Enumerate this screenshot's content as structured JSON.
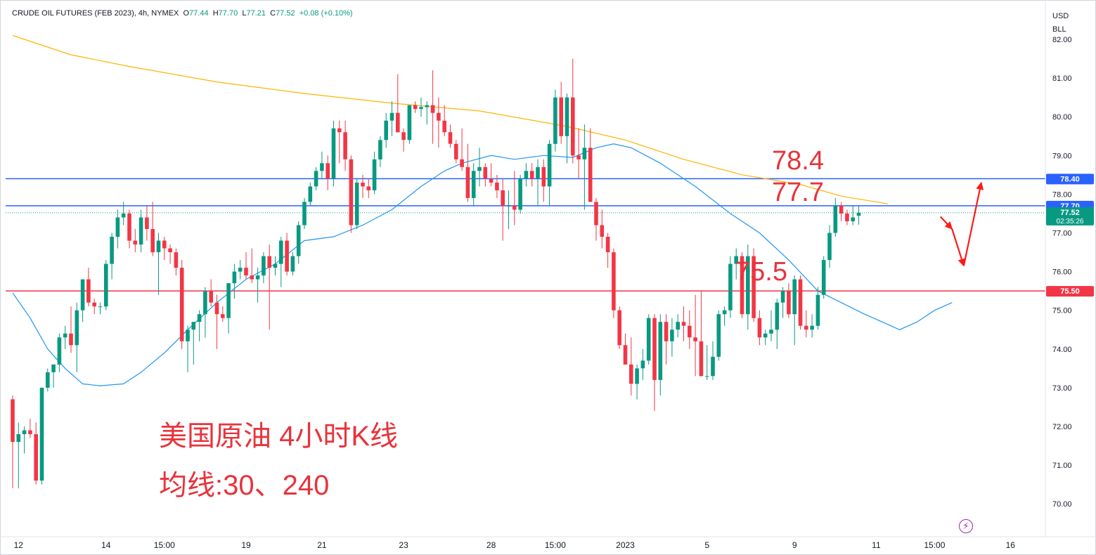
{
  "header": {
    "symbol": "CRUDE OIL FUTURES (FEB 2023), 4h, NYMEX",
    "o_label": "O",
    "o_value": "77.44",
    "h_label": "H",
    "h_value": "77.70",
    "l_label": "L",
    "l_value": "77.21",
    "c_label": "C",
    "c_value": "77.52",
    "change": "+0.08 (+0.10%)"
  },
  "currency": {
    "line1": "USD",
    "line2": "BLL"
  },
  "annotations": {
    "level_high": "78.4",
    "level_mid": "77.7",
    "level_low": "75.5",
    "title_cn": "美国原油 4小时K线",
    "ma_cn": "均线:30、240"
  },
  "colors": {
    "up": "#089981",
    "down": "#f23645",
    "ma30": "#2196f3",
    "ma240": "#ffb300",
    "hline_blue": "#2962ff",
    "hline_red": "#f23645",
    "annotation": "#e8333b"
  },
  "icons": {
    "event_marker": "lightning-icon"
  },
  "chart_data": {
    "type": "candlestick",
    "title": "CRUDE OIL FUTURES (FEB 2023), 4h, NYMEX",
    "ylim": [
      69.5,
      82.4
    ],
    "y_ticks": [
      70,
      71,
      72,
      73,
      74,
      75,
      76,
      77,
      78,
      79,
      80,
      81,
      82
    ],
    "y_tick_labels": [
      "70.00",
      "71.00",
      "72.00",
      "73.00",
      "74.00",
      "75.00",
      "76.00",
      "77.00",
      "78.00",
      "79.00",
      "80.00",
      "81.00",
      "82.00"
    ],
    "x_tick_labels": [
      {
        "label": "12",
        "bar": 1
      },
      {
        "label": "14",
        "bar": 16
      },
      {
        "label": "15:00",
        "bar": 26
      },
      {
        "label": "19",
        "bar": 40
      },
      {
        "label": "21",
        "bar": 53
      },
      {
        "label": "23",
        "bar": 67
      },
      {
        "label": "28",
        "bar": 82
      },
      {
        "label": "15:00",
        "bar": 93
      },
      {
        "label": "2023",
        "bar": 105
      },
      {
        "label": "5",
        "bar": 119
      },
      {
        "label": "9",
        "bar": 134
      },
      {
        "label": "11",
        "bar": 148
      },
      {
        "label": "15:00",
        "bar": 158
      },
      {
        "label": "16",
        "bar": 171
      }
    ],
    "price_labels": [
      {
        "value": 78.4,
        "text": "78.40",
        "color": "#2962ff"
      },
      {
        "value": 77.7,
        "text": "77.70",
        "color": "#2962ff"
      },
      {
        "value": 77.52,
        "text": "77.52",
        "subtext": "02:35:26",
        "color": "#089981"
      },
      {
        "value": 75.5,
        "text": "75.50",
        "color": "#f23645"
      }
    ],
    "horizontal_lines": [
      {
        "value": 78.4,
        "color": "#2962ff",
        "style": "solid"
      },
      {
        "value": 77.7,
        "color": "#2962ff",
        "style": "solid"
      },
      {
        "value": 77.52,
        "color": "#089981",
        "style": "dotted"
      },
      {
        "value": 75.5,
        "color": "#f23645",
        "style": "solid"
      }
    ],
    "series_ma": [
      {
        "name": "MA30",
        "color": "#2196f3",
        "points": [
          [
            0,
            75.45
          ],
          [
            3,
            74.8
          ],
          [
            6,
            74.0
          ],
          [
            9,
            73.5
          ],
          [
            12,
            73.1
          ],
          [
            15,
            73.05
          ],
          [
            19,
            73.1
          ],
          [
            22,
            73.4
          ],
          [
            26,
            73.9
          ],
          [
            30,
            74.5
          ],
          [
            35,
            75.2
          ],
          [
            40,
            75.8
          ],
          [
            45,
            76.2
          ],
          [
            50,
            76.8
          ],
          [
            55,
            76.9
          ],
          [
            60,
            77.2
          ],
          [
            65,
            77.6
          ],
          [
            70,
            78.2
          ],
          [
            74,
            78.6
          ],
          [
            77,
            78.8
          ],
          [
            82,
            79.0
          ],
          [
            86,
            78.9
          ],
          [
            91,
            79.0
          ],
          [
            96,
            78.95
          ],
          [
            100,
            79.2
          ],
          [
            103,
            79.3
          ],
          [
            106,
            79.2
          ],
          [
            111,
            78.8
          ],
          [
            117,
            78.2
          ],
          [
            123,
            77.5
          ],
          [
            128,
            77.0
          ],
          [
            133,
            76.3
          ],
          [
            138,
            75.5
          ],
          [
            142,
            75.2
          ],
          [
            146,
            74.9
          ],
          [
            149,
            74.7
          ],
          [
            152,
            74.5
          ],
          [
            155,
            74.7
          ],
          [
            158,
            75.0
          ],
          [
            161,
            75.2
          ]
        ]
      },
      {
        "name": "MA240",
        "color": "#ffb300",
        "points": [
          [
            0,
            82.1
          ],
          [
            10,
            81.6
          ],
          [
            20,
            81.3
          ],
          [
            35,
            80.9
          ],
          [
            50,
            80.6
          ],
          [
            65,
            80.35
          ],
          [
            80,
            80.15
          ],
          [
            95,
            79.75
          ],
          [
            105,
            79.4
          ],
          [
            115,
            78.9
          ],
          [
            125,
            78.5
          ],
          [
            135,
            78.25
          ],
          [
            142,
            77.95
          ],
          [
            150,
            77.75
          ]
        ]
      }
    ],
    "arrows": [
      {
        "from": [
          159,
          77.42
        ],
        "to": [
          161,
          77.1
        ]
      },
      {
        "from": [
          161,
          77.1
        ],
        "to": [
          163,
          76.15
        ]
      },
      {
        "from": [
          163,
          76.15
        ],
        "to": [
          166,
          78.3
        ]
      }
    ],
    "ohlc": [
      [
        72.7,
        72.8,
        70.4,
        71.6
      ],
      [
        71.6,
        72.1,
        70.4,
        71.8
      ],
      [
        71.8,
        72.0,
        71.3,
        71.9
      ],
      [
        71.9,
        72.2,
        71.7,
        71.8
      ],
      [
        71.8,
        72.1,
        70.5,
        70.6
      ],
      [
        70.6,
        73.0,
        70.5,
        73.0
      ],
      [
        73.0,
        73.5,
        72.9,
        73.4
      ],
      [
        73.4,
        73.6,
        73.0,
        73.6
      ],
      [
        73.6,
        74.4,
        73.4,
        74.3
      ],
      [
        74.3,
        74.6,
        74.0,
        74.4
      ],
      [
        74.4,
        75.1,
        73.9,
        74.1
      ],
      [
        74.1,
        75.2,
        73.4,
        75.0
      ],
      [
        75.0,
        75.8,
        74.7,
        75.8
      ],
      [
        75.8,
        76.1,
        75.1,
        75.2
      ],
      [
        75.2,
        75.3,
        74.9,
        75.1
      ],
      [
        75.1,
        75.2,
        74.9,
        75.1
      ],
      [
        75.1,
        76.3,
        75.0,
        76.2
      ],
      [
        76.2,
        77.0,
        75.8,
        76.9
      ],
      [
        76.9,
        77.6,
        76.6,
        77.4
      ],
      [
        77.4,
        77.8,
        77.2,
        77.5
      ],
      [
        77.5,
        77.6,
        76.6,
        76.8
      ],
      [
        76.8,
        77.1,
        76.5,
        76.7
      ],
      [
        76.7,
        77.6,
        76.5,
        77.4
      ],
      [
        77.4,
        77.7,
        76.8,
        77.1
      ],
      [
        77.1,
        77.8,
        76.4,
        76.5
      ],
      [
        76.5,
        77.0,
        75.4,
        76.8
      ],
      [
        76.8,
        76.9,
        76.3,
        76.6
      ],
      [
        76.6,
        76.7,
        76.2,
        76.5
      ],
      [
        76.5,
        76.6,
        75.9,
        76.1
      ],
      [
        76.1,
        76.3,
        74.0,
        74.2
      ],
      [
        74.2,
        74.6,
        73.4,
        74.5
      ],
      [
        74.5,
        74.7,
        73.6,
        74.7
      ],
      [
        74.7,
        75.0,
        74.2,
        74.9
      ],
      [
        74.9,
        75.6,
        74.3,
        75.5
      ],
      [
        75.5,
        75.8,
        75.1,
        75.2
      ],
      [
        75.2,
        75.4,
        74.0,
        74.9
      ],
      [
        74.9,
        75.1,
        74.7,
        74.8
      ],
      [
        74.8,
        75.7,
        74.4,
        75.7
      ],
      [
        75.7,
        76.2,
        75.3,
        76.0
      ],
      [
        76.0,
        76.3,
        75.8,
        76.1
      ],
      [
        76.1,
        76.5,
        75.8,
        75.9
      ],
      [
        75.9,
        76.6,
        75.7,
        75.8
      ],
      [
        75.8,
        76.1,
        75.2,
        75.9
      ],
      [
        75.9,
        76.5,
        75.7,
        76.4
      ],
      [
        76.4,
        76.7,
        74.5,
        76.1
      ],
      [
        76.1,
        76.4,
        75.9,
        76.2
      ],
      [
        76.2,
        76.9,
        75.6,
        76.8
      ],
      [
        76.8,
        77.0,
        75.9,
        76.0
      ],
      [
        76.0,
        76.5,
        75.9,
        76.4
      ],
      [
        76.4,
        77.3,
        76.2,
        77.2
      ],
      [
        77.2,
        77.9,
        77.1,
        77.8
      ],
      [
        77.8,
        78.3,
        77.7,
        78.2
      ],
      [
        78.2,
        78.7,
        78.1,
        78.6
      ],
      [
        78.6,
        79.1,
        78.4,
        78.8
      ],
      [
        78.8,
        79.0,
        78.1,
        78.4
      ],
      [
        78.4,
        79.9,
        78.2,
        79.7
      ],
      [
        79.7,
        79.9,
        78.8,
        79.6
      ],
      [
        79.6,
        79.9,
        78.6,
        78.9
      ],
      [
        78.9,
        79.0,
        77.0,
        77.2
      ],
      [
        77.2,
        78.4,
        77.1,
        78.3
      ],
      [
        78.3,
        78.5,
        77.9,
        78.2
      ],
      [
        78.2,
        78.4,
        77.9,
        78.1
      ],
      [
        78.1,
        79.1,
        78.0,
        78.9
      ],
      [
        78.9,
        79.5,
        78.7,
        79.4
      ],
      [
        79.4,
        80.1,
        79.2,
        79.9
      ],
      [
        79.9,
        80.4,
        79.5,
        80.1
      ],
      [
        80.1,
        81.1,
        79.6,
        79.6
      ],
      [
        79.6,
        79.7,
        79.1,
        79.4
      ],
      [
        79.4,
        80.3,
        79.3,
        80.3
      ],
      [
        80.3,
        80.4,
        80.1,
        80.2
      ],
      [
        80.2,
        80.5,
        80.0,
        80.25
      ],
      [
        80.25,
        80.4,
        79.8,
        80.3
      ],
      [
        80.3,
        81.2,
        79.3,
        80.1
      ],
      [
        80.1,
        80.5,
        79.2,
        79.9
      ],
      [
        79.9,
        80.3,
        79.5,
        79.6
      ],
      [
        79.6,
        79.8,
        79.2,
        79.3
      ],
      [
        79.3,
        79.4,
        78.8,
        78.9
      ],
      [
        78.9,
        79.7,
        78.6,
        78.7
      ],
      [
        78.7,
        79.3,
        77.8,
        77.9
      ],
      [
        77.9,
        78.8,
        77.7,
        78.6
      ],
      [
        78.6,
        79.2,
        78.2,
        78.7
      ],
      [
        78.7,
        78.8,
        78.2,
        78.4
      ],
      [
        78.4,
        78.8,
        78.2,
        78.3
      ],
      [
        78.3,
        78.5,
        77.9,
        78.1
      ],
      [
        78.1,
        78.4,
        76.8,
        77.7
      ],
      [
        77.7,
        78.1,
        77.1,
        77.7
      ],
      [
        77.7,
        78.6,
        77.2,
        77.6
      ],
      [
        77.6,
        78.5,
        77.5,
        78.4
      ],
      [
        78.4,
        78.8,
        78.2,
        78.6
      ],
      [
        78.6,
        78.8,
        78.2,
        78.4
      ],
      [
        78.4,
        78.9,
        77.7,
        78.7
      ],
      [
        78.7,
        78.9,
        77.8,
        78.2
      ],
      [
        78.2,
        79.4,
        77.7,
        79.3
      ],
      [
        79.3,
        80.7,
        79.1,
        80.5
      ],
      [
        80.5,
        80.9,
        79.3,
        79.5
      ],
      [
        79.5,
        80.6,
        78.8,
        80.5
      ],
      [
        80.5,
        81.5,
        78.8,
        79.0
      ],
      [
        79.0,
        79.7,
        78.4,
        78.9
      ],
      [
        78.9,
        79.8,
        77.6,
        79.2
      ],
      [
        79.2,
        79.7,
        77.9,
        77.8
      ],
      [
        77.8,
        77.9,
        76.8,
        77.2
      ],
      [
        77.2,
        77.6,
        76.6,
        76.9
      ],
      [
        76.9,
        77.0,
        76.1,
        76.5
      ],
      [
        76.5,
        76.6,
        74.8,
        75.0
      ],
      [
        75.0,
        75.1,
        74.0,
        74.1
      ],
      [
        74.1,
        74.4,
        73.6,
        73.6
      ],
      [
        73.6,
        74.3,
        72.8,
        73.1
      ],
      [
        73.1,
        73.6,
        72.7,
        73.5
      ],
      [
        73.5,
        74.0,
        73.2,
        73.7
      ],
      [
        73.7,
        74.9,
        73.6,
        74.8
      ],
      [
        74.8,
        74.9,
        72.4,
        73.2
      ],
      [
        73.2,
        74.9,
        72.8,
        74.7
      ],
      [
        74.7,
        74.9,
        73.6,
        74.2
      ],
      [
        74.2,
        74.8,
        73.8,
        74.5
      ],
      [
        74.5,
        74.9,
        74.3,
        74.7
      ],
      [
        74.7,
        75.1,
        74.2,
        74.6
      ],
      [
        74.6,
        75.0,
        74.0,
        74.3
      ],
      [
        74.3,
        75.4,
        73.3,
        74.2
      ],
      [
        74.2,
        75.5,
        73.3,
        73.3
      ],
      [
        73.3,
        74.1,
        73.2,
        73.3
      ],
      [
        73.3,
        74.2,
        73.2,
        73.8
      ],
      [
        73.8,
        75.0,
        73.7,
        74.9
      ],
      [
        74.9,
        75.1,
        74.6,
        75.0
      ],
      [
        75.0,
        76.4,
        74.8,
        76.2
      ],
      [
        76.2,
        76.6,
        75.8,
        76.4
      ],
      [
        76.4,
        76.5,
        74.8,
        74.9
      ],
      [
        74.9,
        76.7,
        74.5,
        76.4
      ],
      [
        76.4,
        76.6,
        74.7,
        74.8
      ],
      [
        74.8,
        75.0,
        74.1,
        74.3
      ],
      [
        74.3,
        74.5,
        74.1,
        74.4
      ],
      [
        74.4,
        75.0,
        74.2,
        74.5
      ],
      [
        74.5,
        75.3,
        74.0,
        75.2
      ],
      [
        75.2,
        75.6,
        74.8,
        75.5
      ],
      [
        75.5,
        75.7,
        74.8,
        74.9
      ],
      [
        74.9,
        75.9,
        74.1,
        75.8
      ],
      [
        75.8,
        75.9,
        74.5,
        74.6
      ],
      [
        74.6,
        75.0,
        74.3,
        74.5
      ],
      [
        74.5,
        74.9,
        74.3,
        74.6
      ],
      [
        74.6,
        75.6,
        74.5,
        75.4
      ],
      [
        75.4,
        76.4,
        75.3,
        76.3
      ],
      [
        76.3,
        77.2,
        76.1,
        77.0
      ],
      [
        77.0,
        77.9,
        76.9,
        77.7
      ],
      [
        77.7,
        77.8,
        77.3,
        77.5
      ],
      [
        77.5,
        77.6,
        77.2,
        77.3
      ],
      [
        77.3,
        77.7,
        77.2,
        77.4
      ],
      [
        77.44,
        77.7,
        77.21,
        77.52
      ]
    ]
  }
}
